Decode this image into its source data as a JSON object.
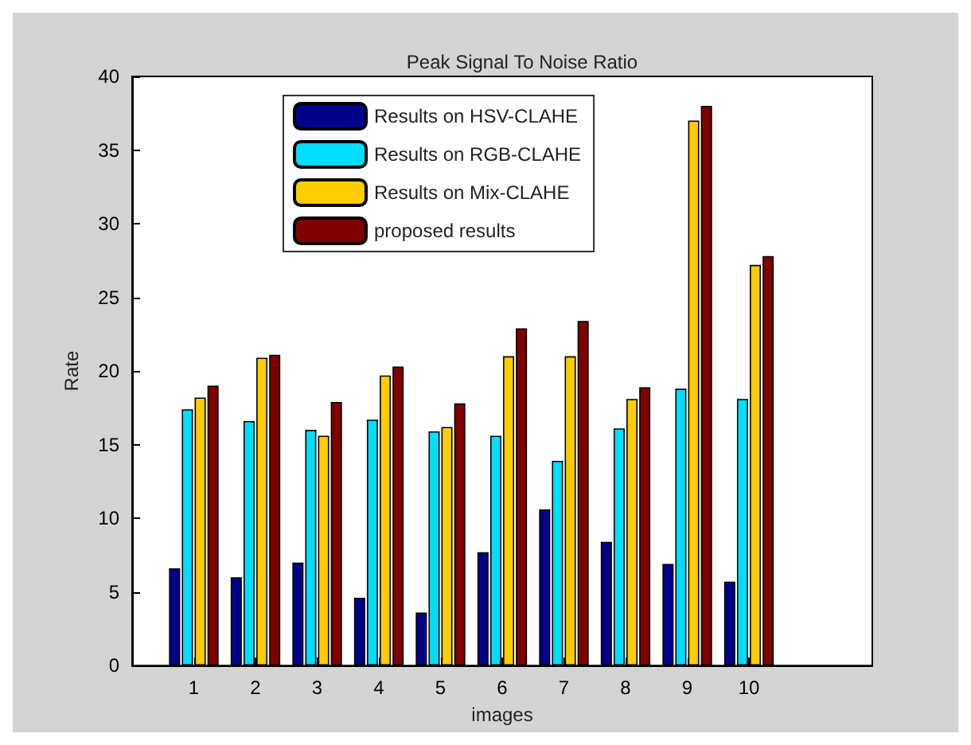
{
  "chart_data": {
    "type": "bar",
    "title": "Peak Signal To Noise Ratio",
    "xlabel": "images",
    "ylabel": "Rate",
    "x": [
      1,
      2,
      3,
      4,
      5,
      6,
      7,
      8,
      9,
      10
    ],
    "series": [
      {
        "name": "Results on HSV-CLAHE",
        "color": "#00008b",
        "values": [
          6.6,
          6.0,
          7.0,
          4.6,
          3.6,
          7.7,
          10.6,
          8.4,
          6.9,
          5.7
        ]
      },
      {
        "name": "Results on RGB-CLAHE",
        "color": "#00ddff",
        "values": [
          17.4,
          16.6,
          16.0,
          16.7,
          15.9,
          15.6,
          13.9,
          16.1,
          18.8,
          18.1
        ]
      },
      {
        "name": "Results on Mix-CLAHE",
        "color": "#ffcc00",
        "values": [
          18.2,
          20.9,
          15.6,
          19.7,
          16.2,
          21.0,
          21.0,
          18.1,
          37.0,
          27.2
        ]
      },
      {
        "name": "proposed results",
        "color": "#800000",
        "values": [
          19.0,
          21.1,
          17.9,
          20.3,
          17.8,
          22.9,
          23.4,
          18.9,
          38.0,
          27.8
        ]
      }
    ],
    "xlim": [
      0,
      12
    ],
    "xticks": [
      1,
      2,
      3,
      4,
      5,
      6,
      7,
      8,
      9,
      10
    ],
    "ylim": [
      0,
      40
    ],
    "yticks": [
      0,
      5,
      10,
      15,
      20,
      25,
      30,
      35,
      40
    ],
    "grid": false,
    "legend": "top"
  }
}
